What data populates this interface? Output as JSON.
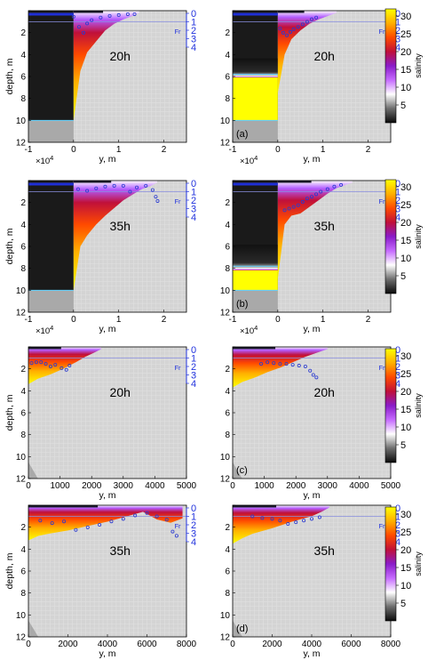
{
  "colors": {
    "land": "#d4d4d4",
    "grid": "#bdbdbd",
    "grid_light": "#e2e2e2",
    "seabed": "#a9a9a9",
    "dark_layer": "#1a1a1a",
    "froude_line": "#1f2fd6",
    "froude_marker": "#2a3ad0",
    "froude_axis": "#2233dd",
    "isohaline": "#5fd2ff"
  },
  "colorbar": {
    "label": "salinity",
    "ticks": [
      5,
      10,
      15,
      20,
      25,
      30
    ],
    "range": [
      0,
      32
    ],
    "colormap": [
      "#0a0a0a",
      "#6e6e6e",
      "#ffffff",
      "#c66bff",
      "#8a1bc9",
      "#c0103a",
      "#ff4a00",
      "#ffb000",
      "#ffff00"
    ]
  },
  "chart_data": [
    {
      "type": "heatmap",
      "panel_label": "",
      "time_label": "20h",
      "xlabel": "y, m",
      "ylabel": "depth, m",
      "xlim": [
        -10000,
        25000
      ],
      "ylim": [
        12,
        0
      ],
      "xticks": [
        -1,
        0,
        1,
        2
      ],
      "xtick_exponent": "×10",
      "exp_sup": "4",
      "yticks": [
        0,
        2,
        4,
        6,
        8,
        10,
        12
      ],
      "fr_axis": {
        "label": "Fr",
        "ticks": [
          0,
          1,
          2,
          3,
          4
        ],
        "range": [
          0,
          4
        ],
        "threshold": 1
      },
      "seabed_depth": [
        [
          -10000,
          10
        ],
        [
          0,
          10
        ]
      ],
      "dark_layer_bottom": 10,
      "plume": {
        "x": [
          0,
          1500,
          3000,
          5000,
          7000,
          9000,
          11000,
          13000,
          14500
        ],
        "bottom": [
          10,
          5.5,
          3.8,
          2.8,
          1.8,
          1.2,
          0.8,
          0.5,
          0.2
        ]
      },
      "froude": [
        [
          0,
          0.4
        ],
        [
          1200,
          1.6
        ],
        [
          2200,
          2.3
        ],
        [
          3000,
          1.2
        ],
        [
          4000,
          0.8
        ],
        [
          6000,
          0.5
        ],
        [
          8000,
          0.3
        ],
        [
          10000,
          0.2
        ],
        [
          12000,
          0.1
        ],
        [
          13500,
          0.1
        ]
      ]
    },
    {
      "type": "heatmap",
      "panel_label": "(a)",
      "time_label": "20h",
      "xlabel": "y, m",
      "ylabel": "",
      "xlim": [
        -10000,
        25000
      ],
      "ylim": [
        12,
        0
      ],
      "xticks": [
        -1,
        0,
        1,
        2
      ],
      "xtick_exponent": "×10",
      "exp_sup": "4",
      "yticks": [
        0,
        2,
        4,
        6,
        8,
        10,
        12
      ],
      "fr_axis": {
        "label": "Fr",
        "ticks": [
          0,
          1,
          2,
          3,
          4
        ],
        "range": [
          0,
          4
        ],
        "threshold": 1
      },
      "seabed_depth": [
        [
          -10000,
          10
        ],
        [
          0,
          10
        ]
      ],
      "dark_layer_bottom": 5.8,
      "plume": {
        "x": [
          0,
          1500,
          3000,
          5000,
          7000,
          9000,
          11000,
          13000
        ],
        "bottom": [
          7.5,
          4.0,
          2.6,
          1.8,
          1.2,
          0.8,
          0.5,
          0.2
        ]
      },
      "froude": [
        [
          500,
          1.8
        ],
        [
          1200,
          2.3
        ],
        [
          2000,
          2.6
        ],
        [
          2800,
          2.2
        ],
        [
          3500,
          1.9
        ],
        [
          4500,
          1.6
        ],
        [
          5500,
          1.3
        ],
        [
          6500,
          1.0
        ],
        [
          7500,
          0.7
        ],
        [
          8500,
          0.5
        ]
      ]
    },
    {
      "type": "heatmap",
      "panel_label": "",
      "time_label": "35h",
      "xlabel": "y, m",
      "ylabel": "depth, m",
      "xlim": [
        -10000,
        25000
      ],
      "ylim": [
        12,
        0
      ],
      "xticks": [
        -1,
        0,
        1,
        2
      ],
      "xtick_exponent": "×10",
      "exp_sup": "4",
      "yticks": [
        0,
        2,
        4,
        6,
        8,
        10,
        12
      ],
      "fr_axis": {
        "label": "Fr",
        "ticks": [
          0,
          1,
          2,
          3,
          4
        ],
        "range": [
          0,
          4
        ],
        "threshold": 1
      },
      "seabed_depth": [
        [
          -10000,
          10
        ],
        [
          0,
          10
        ]
      ],
      "dark_layer_bottom": 10,
      "plume": {
        "x": [
          0,
          1500,
          3000,
          5000,
          7000,
          9000,
          11000,
          13000,
          15000,
          17000,
          18500
        ],
        "bottom": [
          10,
          6.0,
          5.0,
          4.0,
          3.2,
          2.5,
          1.8,
          1.3,
          0.8,
          0.5,
          0.2
        ]
      },
      "froude": [
        [
          1000,
          0.7
        ],
        [
          3000,
          0.9
        ],
        [
          5000,
          0.6
        ],
        [
          7000,
          0.4
        ],
        [
          9000,
          0.3
        ],
        [
          11000,
          0.3
        ],
        [
          12500,
          1.0
        ],
        [
          14000,
          0.5
        ],
        [
          16000,
          0.3
        ],
        [
          17500,
          0.8
        ],
        [
          18200,
          1.6
        ],
        [
          18600,
          2.1
        ]
      ]
    },
    {
      "type": "heatmap",
      "panel_label": "(b)",
      "time_label": "35h",
      "xlabel": "y, m",
      "ylabel": "",
      "xlim": [
        -10000,
        25000
      ],
      "ylim": [
        12,
        0
      ],
      "xticks": [
        -1,
        0,
        1,
        2
      ],
      "xtick_exponent": "×10",
      "exp_sup": "4",
      "yticks": [
        0,
        2,
        4,
        6,
        8,
        10,
        12
      ],
      "fr_axis": {
        "label": "Fr",
        "ticks": [
          0,
          1,
          2,
          3,
          4
        ],
        "range": [
          0,
          4
        ],
        "threshold": 1
      },
      "seabed_depth": [
        [
          -10000,
          10
        ],
        [
          0,
          10
        ]
      ],
      "dark_layer_bottom": 7.8,
      "plume": {
        "x": [
          0,
          1500,
          3000,
          5000,
          7000,
          9000,
          11000,
          13000,
          15000,
          16500
        ],
        "bottom": [
          9.0,
          4.0,
          3.2,
          3.0,
          2.4,
          1.8,
          1.2,
          0.7,
          0.4,
          0.2
        ]
      },
      "froude": [
        [
          1500,
          3.2
        ],
        [
          2500,
          3.0
        ],
        [
          3500,
          2.8
        ],
        [
          4500,
          2.6
        ],
        [
          5500,
          2.2
        ],
        [
          6500,
          1.8
        ],
        [
          7500,
          1.6
        ],
        [
          8500,
          1.3
        ],
        [
          9500,
          1.0
        ],
        [
          11000,
          0.7
        ],
        [
          12500,
          0.4
        ],
        [
          14000,
          0.2
        ]
      ]
    },
    {
      "type": "heatmap",
      "panel_label": "",
      "time_label": "20h",
      "xlabel": "y, m",
      "ylabel": "depth, m",
      "xlim": [
        0,
        5000
      ],
      "ylim": [
        12,
        0
      ],
      "xticks": [
        0,
        1000,
        2000,
        3000,
        4000,
        5000
      ],
      "xtick_exponent": "",
      "exp_sup": "",
      "yticks": [
        0,
        2,
        4,
        6,
        8,
        10,
        12
      ],
      "fr_axis": {
        "label": "Fr",
        "ticks": [
          0,
          1,
          2,
          3,
          4
        ],
        "range": [
          0,
          4
        ],
        "threshold": 1
      },
      "seabed_depth": [
        [
          0,
          10.5
        ],
        [
          300,
          12
        ]
      ],
      "dark_layer_bottom": 0,
      "plume": {
        "x": [
          0,
          300,
          700,
          1100,
          1500,
          1800,
          2100,
          2300
        ],
        "bottom": [
          3.4,
          2.9,
          2.5,
          2.0,
          1.4,
          0.9,
          0.5,
          0.2
        ]
      },
      "froude": [
        [
          100,
          1.6
        ],
        [
          250,
          1.5
        ],
        [
          400,
          1.5
        ],
        [
          550,
          1.7
        ],
        [
          700,
          2.0
        ],
        [
          850,
          1.8
        ],
        [
          1050,
          2.2
        ],
        [
          1200,
          2.4
        ],
        [
          1300,
          1.9
        ]
      ]
    },
    {
      "type": "heatmap",
      "panel_label": "(c)",
      "time_label": "20h",
      "xlabel": "y, m",
      "ylabel": "",
      "xlim": [
        0,
        5000
      ],
      "ylim": [
        12,
        0
      ],
      "xticks": [
        0,
        1000,
        2000,
        3000,
        4000,
        5000
      ],
      "xtick_exponent": "",
      "exp_sup": "",
      "yticks": [
        0,
        2,
        4,
        6,
        8,
        10,
        12
      ],
      "fr_axis": {
        "label": "Fr",
        "ticks": [
          0,
          1,
          2,
          3,
          4
        ],
        "range": [
          0,
          4
        ],
        "threshold": 1
      },
      "seabed_depth": [
        [
          0,
          10.5
        ],
        [
          300,
          12
        ]
      ],
      "dark_layer_bottom": 0,
      "plume": {
        "x": [
          0,
          300,
          700,
          1100,
          1500,
          1900,
          2300,
          2700,
          3000
        ],
        "bottom": [
          3.7,
          3.2,
          2.8,
          2.3,
          1.9,
          1.4,
          0.9,
          0.5,
          0.2
        ]
      },
      "froude": [
        [
          900,
          1.7
        ],
        [
          1100,
          1.5
        ],
        [
          1300,
          1.6
        ],
        [
          1500,
          1.7
        ],
        [
          1700,
          1.7
        ],
        [
          1900,
          1.8
        ],
        [
          2100,
          1.9
        ],
        [
          2300,
          2.0
        ],
        [
          2450,
          2.5
        ],
        [
          2550,
          3.0
        ],
        [
          2650,
          3.3
        ]
      ]
    },
    {
      "type": "heatmap",
      "panel_label": "",
      "time_label": "35h",
      "xlabel": "y, m",
      "ylabel": "depth, m",
      "xlim": [
        0,
        8000
      ],
      "ylim": [
        12,
        0
      ],
      "xticks": [
        0,
        2000,
        4000,
        6000,
        8000
      ],
      "xtick_exponent": "",
      "exp_sup": "",
      "yticks": [
        0,
        2,
        4,
        6,
        8,
        10,
        12
      ],
      "fr_axis": {
        "label": "Fr",
        "ticks": [
          0,
          1,
          2,
          3,
          4
        ],
        "range": [
          0,
          4
        ],
        "threshold": 1
      },
      "seabed_depth": [
        [
          0,
          10.5
        ],
        [
          500,
          12
        ]
      ],
      "dark_layer_bottom": 0,
      "plume": {
        "x": [
          0,
          500,
          1000,
          2000,
          3000,
          4000,
          5000,
          5800,
          6500,
          7200,
          7800
        ],
        "bottom": [
          3.2,
          2.8,
          2.6,
          2.3,
          1.9,
          1.5,
          1.0,
          0.6,
          1.3,
          1.6,
          1.2
        ]
      },
      "froude": [
        [
          600,
          1.5
        ],
        [
          1200,
          1.8
        ],
        [
          1800,
          1.6
        ],
        [
          2400,
          2.6
        ],
        [
          3000,
          2.3
        ],
        [
          3600,
          2.0
        ],
        [
          4200,
          1.6
        ],
        [
          4800,
          1.3
        ],
        [
          5400,
          0.9
        ],
        [
          6000,
          0.6
        ],
        [
          6500,
          1.0
        ],
        [
          7000,
          1.4
        ],
        [
          7300,
          2.8
        ],
        [
          7500,
          3.3
        ]
      ]
    },
    {
      "type": "heatmap",
      "panel_label": "(d)",
      "time_label": "35h",
      "xlabel": "y, m",
      "ylabel": "",
      "xlim": [
        0,
        8000
      ],
      "ylim": [
        12,
        0
      ],
      "xticks": [
        0,
        2000,
        4000,
        6000,
        8000
      ],
      "xtick_exponent": "",
      "exp_sup": "",
      "yticks": [
        0,
        2,
        4,
        6,
        8,
        10,
        12
      ],
      "fr_axis": {
        "label": "Fr",
        "ticks": [
          0,
          1,
          2,
          3,
          4
        ],
        "range": [
          0,
          4
        ],
        "threshold": 1
      },
      "seabed_depth": [
        [
          0,
          10.5
        ],
        [
          500,
          12
        ]
      ],
      "dark_layer_bottom": 0,
      "plume": {
        "x": [
          0,
          500,
          1000,
          2000,
          3000,
          4000,
          4500,
          4900
        ],
        "bottom": [
          3.5,
          3.0,
          2.6,
          2.1,
          1.5,
          1.0,
          0.6,
          0.2
        ]
      },
      "froude": [
        [
          1000,
          1.0
        ],
        [
          1500,
          1.2
        ],
        [
          2000,
          1.3
        ],
        [
          2400,
          1.5
        ],
        [
          2800,
          1.9
        ],
        [
          3200,
          1.7
        ],
        [
          3600,
          1.5
        ],
        [
          4000,
          1.3
        ],
        [
          4400,
          1.1
        ]
      ]
    }
  ]
}
